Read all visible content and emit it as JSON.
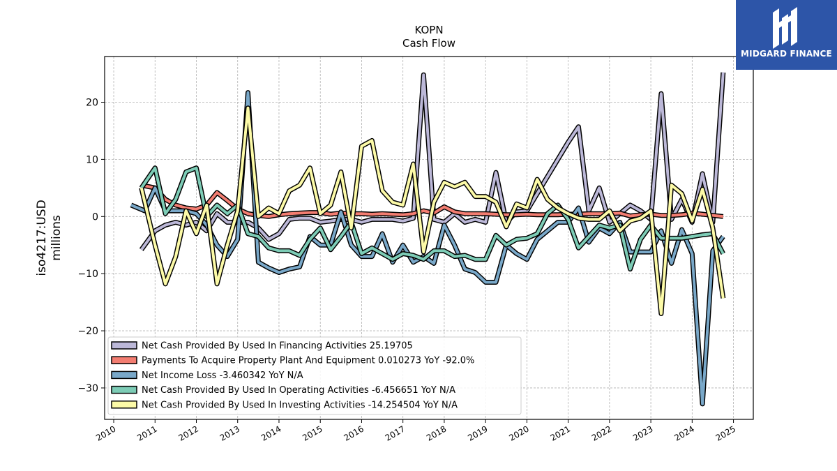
{
  "logo": {
    "text": "MIDGARD FINANCE",
    "icon": "midgard-m-icon",
    "background": "#2d55a8"
  },
  "chart_data": {
    "type": "line",
    "title": "KOPN",
    "subtitle": "Cash Flow",
    "ylabel_line1": "iso4217:USD",
    "ylabel_line2": "millions",
    "xlabel": "",
    "x_ticks": [
      "2010",
      "2011",
      "2012",
      "2013",
      "2014",
      "2015",
      "2016",
      "2017",
      "2018",
      "2019",
      "2020",
      "2021",
      "2022",
      "2023",
      "2024",
      "2025"
    ],
    "y_ticks": [
      20,
      10,
      0,
      -10,
      -20,
      -30
    ],
    "xlim": [
      2009.78,
      2025.48
    ],
    "ylim": [
      -35.5,
      28
    ],
    "grid": true,
    "legend_position": "lower-left",
    "series": [
      {
        "name": "Net Cash Provided By Used In Financing Activities",
        "legend": "Net Cash Provided By Used In Financing Activities  25.19705",
        "color": "#bcb8d8",
        "x": [
          2010.67,
          2011.0,
          2011.25,
          2011.5,
          2011.75,
          2012.0,
          2012.25,
          2012.5,
          2012.75,
          2013.0,
          2013.25,
          2013.5,
          2013.75,
          2014.0,
          2014.25,
          2014.5,
          2014.75,
          2015.0,
          2015.25,
          2015.5,
          2015.75,
          2016.0,
          2016.25,
          2016.5,
          2016.75,
          2017.0,
          2017.25,
          2017.5,
          2017.75,
          2018.0,
          2018.25,
          2018.5,
          2018.75,
          2019.0,
          2019.25,
          2019.5,
          2019.75,
          2020.0,
          2020.25,
          2020.5,
          2020.75,
          2021.0,
          2021.25,
          2021.5,
          2021.75,
          2022.0,
          2022.25,
          2022.5,
          2022.75,
          2023.0,
          2023.25,
          2023.5,
          2023.75,
          2024.0,
          2024.25,
          2024.5,
          2024.75
        ],
        "y": [
          -5.8,
          -2.5,
          -1.5,
          -1.0,
          -1.5,
          -1.0,
          -2.5,
          0.5,
          -1.0,
          -1.0,
          -1.0,
          -2.0,
          -4.0,
          -3.0,
          -0.5,
          -0.3,
          -0.3,
          -1.0,
          -0.8,
          -0.5,
          -0.5,
          -1.0,
          -0.5,
          -0.5,
          -0.5,
          -0.8,
          -0.3,
          24.8,
          -0.5,
          -1.0,
          0.5,
          -1.0,
          -0.5,
          -1.0,
          7.7,
          -1.0,
          0.8,
          1.0,
          4.0,
          7.0,
          10.0,
          13.0,
          15.7,
          1.0,
          5.0,
          -1.0,
          0.5,
          2.0,
          1.0,
          -0.5,
          21.5,
          -0.5,
          3.0,
          -1.0,
          7.5,
          -1.0,
          25.2
        ]
      },
      {
        "name": "Payments To Acquire Property Plant And Equipment",
        "legend": "Payments To Acquire Property Plant And Equipment  0.010273 YoY -92.0%",
        "color": "#f37d71",
        "x": [
          2010.67,
          2011.0,
          2011.25,
          2011.5,
          2011.75,
          2012.0,
          2012.25,
          2012.5,
          2012.75,
          2013.0,
          2013.25,
          2013.5,
          2013.75,
          2014.0,
          2014.25,
          2014.5,
          2014.75,
          2015.0,
          2015.25,
          2015.5,
          2015.75,
          2016.0,
          2016.25,
          2016.5,
          2016.75,
          2017.0,
          2017.25,
          2017.5,
          2017.75,
          2018.0,
          2018.25,
          2018.5,
          2018.75,
          2019.0,
          2019.25,
          2019.5,
          2019.75,
          2020.0,
          2020.25,
          2020.5,
          2020.75,
          2021.0,
          2021.25,
          2021.5,
          2021.75,
          2022.0,
          2022.25,
          2022.5,
          2022.75,
          2023.0,
          2023.25,
          2023.5,
          2023.75,
          2024.0,
          2024.25,
          2024.5,
          2024.75
        ],
        "y": [
          5.5,
          5.0,
          3.0,
          2.0,
          1.5,
          1.3,
          2.0,
          4.2,
          2.8,
          1.3,
          0.5,
          0.2,
          0.0,
          0.3,
          0.5,
          0.6,
          0.7,
          0.7,
          0.4,
          0.6,
          0.5,
          0.5,
          0.4,
          0.5,
          0.4,
          0.3,
          0.5,
          1.0,
          0.6,
          1.7,
          0.8,
          0.5,
          0.5,
          0.5,
          0.4,
          0.3,
          0.3,
          0.4,
          0.3,
          0.3,
          0.3,
          0.4,
          0.4,
          0.5,
          0.5,
          0.5,
          0.6,
          0.1,
          0.3,
          0.4,
          0.2,
          0.2,
          0.3,
          0.6,
          0.4,
          0.2,
          0.0
        ]
      },
      {
        "name": "Net Income Loss",
        "legend": "Net Income Loss  -3.460342 YoY N/A",
        "color": "#79a8c9",
        "x": [
          2010.42,
          2010.75,
          2011.0,
          2011.25,
          2011.5,
          2011.75,
          2012.0,
          2012.25,
          2012.5,
          2012.75,
          2013.0,
          2013.25,
          2013.5,
          2013.75,
          2014.0,
          2014.25,
          2014.5,
          2014.75,
          2015.0,
          2015.25,
          2015.5,
          2015.75,
          2016.0,
          2016.25,
          2016.5,
          2016.75,
          2017.0,
          2017.25,
          2017.5,
          2017.75,
          2018.0,
          2018.25,
          2018.5,
          2018.75,
          2019.0,
          2019.25,
          2019.5,
          2019.75,
          2020.0,
          2020.25,
          2020.5,
          2020.75,
          2021.0,
          2021.25,
          2021.5,
          2021.75,
          2022.0,
          2022.25,
          2022.5,
          2022.75,
          2023.0,
          2023.25,
          2023.5,
          2023.75,
          2024.0,
          2024.25,
          2024.5,
          2024.75
        ],
        "y": [
          2.0,
          1.0,
          5.0,
          1.0,
          1.0,
          1.0,
          0.5,
          -1.5,
          -5.0,
          -7.0,
          -4.0,
          21.7,
          -8.0,
          -9.0,
          -9.8,
          -9.2,
          -8.8,
          -3.5,
          -5.0,
          -5.0,
          0.8,
          -5.0,
          -7.0,
          -7.0,
          -3.0,
          -8.0,
          -5.0,
          -8.0,
          -7.0,
          -8.2,
          -1.5,
          -5.0,
          -9.2,
          -9.8,
          -11.5,
          -11.5,
          -5.0,
          -6.5,
          -7.5,
          -4.0,
          -2.5,
          -1.0,
          -1.0,
          1.5,
          -4.5,
          -2.0,
          -3.0,
          -1.0,
          -6.2,
          -6.2,
          -6.2,
          -2.5,
          -8.2,
          -2.3,
          -6.5,
          -32.8,
          -6.0,
          -3.5
        ]
      },
      {
        "name": "Net Cash Provided By Used In Operating Activities",
        "legend": "Net Cash Provided By Used In Operating Activities  -6.456651 YoY N/A",
        "color": "#7dccb6",
        "x": [
          2010.67,
          2011.0,
          2011.25,
          2011.5,
          2011.75,
          2012.0,
          2012.25,
          2012.5,
          2012.75,
          2013.0,
          2013.25,
          2013.5,
          2013.75,
          2014.0,
          2014.25,
          2014.5,
          2014.75,
          2015.0,
          2015.25,
          2015.5,
          2015.75,
          2016.0,
          2016.25,
          2016.5,
          2016.75,
          2017.0,
          2017.25,
          2017.5,
          2017.75,
          2018.0,
          2018.25,
          2018.5,
          2018.75,
          2019.0,
          2019.25,
          2019.5,
          2019.75,
          2020.0,
          2020.25,
          2020.5,
          2020.75,
          2021.0,
          2021.25,
          2021.5,
          2021.75,
          2022.0,
          2022.25,
          2022.5,
          2022.75,
          2023.0,
          2023.25,
          2023.5,
          2023.75,
          2024.0,
          2024.25,
          2024.5,
          2024.75
        ],
        "y": [
          5.0,
          8.5,
          0.5,
          3.0,
          7.8,
          8.5,
          0.0,
          2.0,
          0.5,
          2.0,
          -3.0,
          -3.5,
          -5.5,
          -6.0,
          -6.0,
          -6.8,
          -4.0,
          -2.0,
          -5.8,
          -3.5,
          -1.0,
          -6.5,
          -5.5,
          -6.5,
          -7.5,
          -6.5,
          -6.8,
          -7.5,
          -6.0,
          -6.0,
          -7.0,
          -6.8,
          -7.5,
          -7.5,
          -3.3,
          -5.0,
          -4.0,
          -3.8,
          -3.0,
          0.5,
          2.0,
          -0.5,
          -5.5,
          -3.5,
          -1.5,
          -2.0,
          -1.5,
          -9.2,
          -4.0,
          -1.5,
          -3.8,
          -3.8,
          -3.8,
          -3.5,
          -3.2,
          -3.0,
          -6.5
        ]
      },
      {
        "name": "Net Cash Provided By Used In Investing Activities",
        "legend": "Net Cash Provided By Used In Investing Activities  -14.254504 YoY N/A",
        "color": "#fcfaa7",
        "x": [
          2010.67,
          2011.0,
          2011.25,
          2011.5,
          2011.75,
          2012.0,
          2012.25,
          2012.5,
          2012.75,
          2013.0,
          2013.25,
          2013.5,
          2013.75,
          2014.0,
          2014.25,
          2014.5,
          2014.75,
          2015.0,
          2015.25,
          2015.5,
          2015.75,
          2016.0,
          2016.25,
          2016.5,
          2016.75,
          2017.0,
          2017.25,
          2017.5,
          2017.75,
          2018.0,
          2018.25,
          2018.5,
          2018.75,
          2019.0,
          2019.25,
          2019.5,
          2019.75,
          2020.0,
          2020.25,
          2020.5,
          2020.75,
          2021.0,
          2021.25,
          2021.5,
          2021.75,
          2022.0,
          2022.25,
          2022.5,
          2022.75,
          2023.0,
          2023.25,
          2023.5,
          2023.75,
          2024.0,
          2024.25,
          2024.5,
          2024.75
        ],
        "y": [
          5.0,
          -5.0,
          -11.8,
          -7.0,
          1.0,
          -3.0,
          2.0,
          -11.8,
          -5.0,
          1.0,
          19.0,
          0.0,
          1.5,
          0.5,
          4.5,
          5.5,
          8.5,
          0.5,
          2.0,
          7.8,
          -2.0,
          12.3,
          13.3,
          4.5,
          2.5,
          2.0,
          9.2,
          -6.2,
          2.5,
          6.0,
          5.2,
          6.0,
          3.5,
          3.5,
          2.5,
          -1.8,
          2.2,
          1.5,
          6.5,
          3.0,
          1.5,
          0.5,
          -0.3,
          -0.5,
          -0.5,
          1.0,
          -2.5,
          -0.8,
          -0.3,
          1.0,
          -17.0,
          5.5,
          4.0,
          -0.8,
          4.8,
          -2.0,
          -14.3
        ]
      }
    ]
  }
}
